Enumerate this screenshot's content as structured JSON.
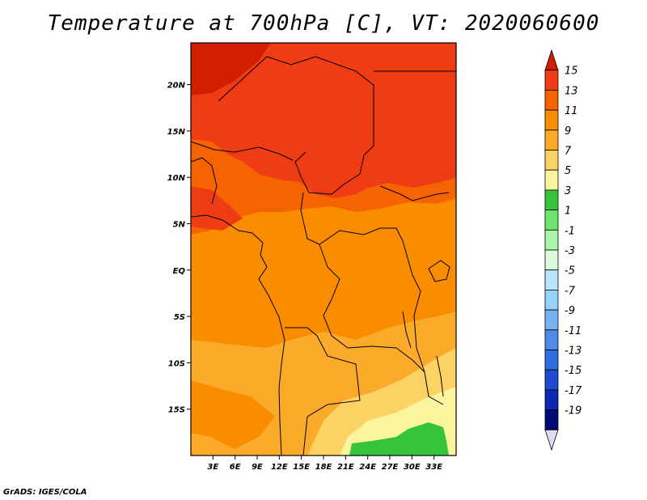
{
  "title": "Temperature at 700hPa [C], VT: 2020060600",
  "credit": "GrADS: IGES/COLA",
  "map": {
    "lon_range": [
      0,
      36
    ],
    "lat_range": [
      -20,
      24.5
    ],
    "lon_ticks": [
      "3E",
      "6E",
      "9E",
      "12E",
      "15E",
      "18E",
      "21E",
      "24E",
      "27E",
      "30E",
      "33E"
    ],
    "lon_tick_values": [
      3,
      6,
      9,
      12,
      15,
      18,
      21,
      24,
      27,
      30,
      33
    ],
    "lat_ticks": [
      "20N",
      "15N",
      "10N",
      "5N",
      "EQ",
      "5S",
      "10S",
      "15S"
    ],
    "lat_tick_values": [
      20,
      15,
      10,
      5,
      0,
      -5,
      -10,
      -15
    ]
  },
  "colorbar": {
    "labels": [
      "15",
      "13",
      "11",
      "9",
      "7",
      "5",
      "3",
      "1",
      "-1",
      "-3",
      "-5",
      "-7",
      "-9",
      "-11",
      "-13",
      "-15",
      "-17",
      "-19"
    ],
    "colors": [
      "#d21e00",
      "#f03c14",
      "#f56400",
      "#fa8c00",
      "#fcaa2a",
      "#fcd264",
      "#fcf5a0",
      "#36c43c",
      "#6ee66e",
      "#aaf5aa",
      "#dcfadc",
      "#b9e6fa",
      "#96d2fa",
      "#78b4f5",
      "#508ce6",
      "#326ee1",
      "#1e4bd2",
      "#0f28b4",
      "#000a78",
      "#dcdcf5"
    ]
  }
}
